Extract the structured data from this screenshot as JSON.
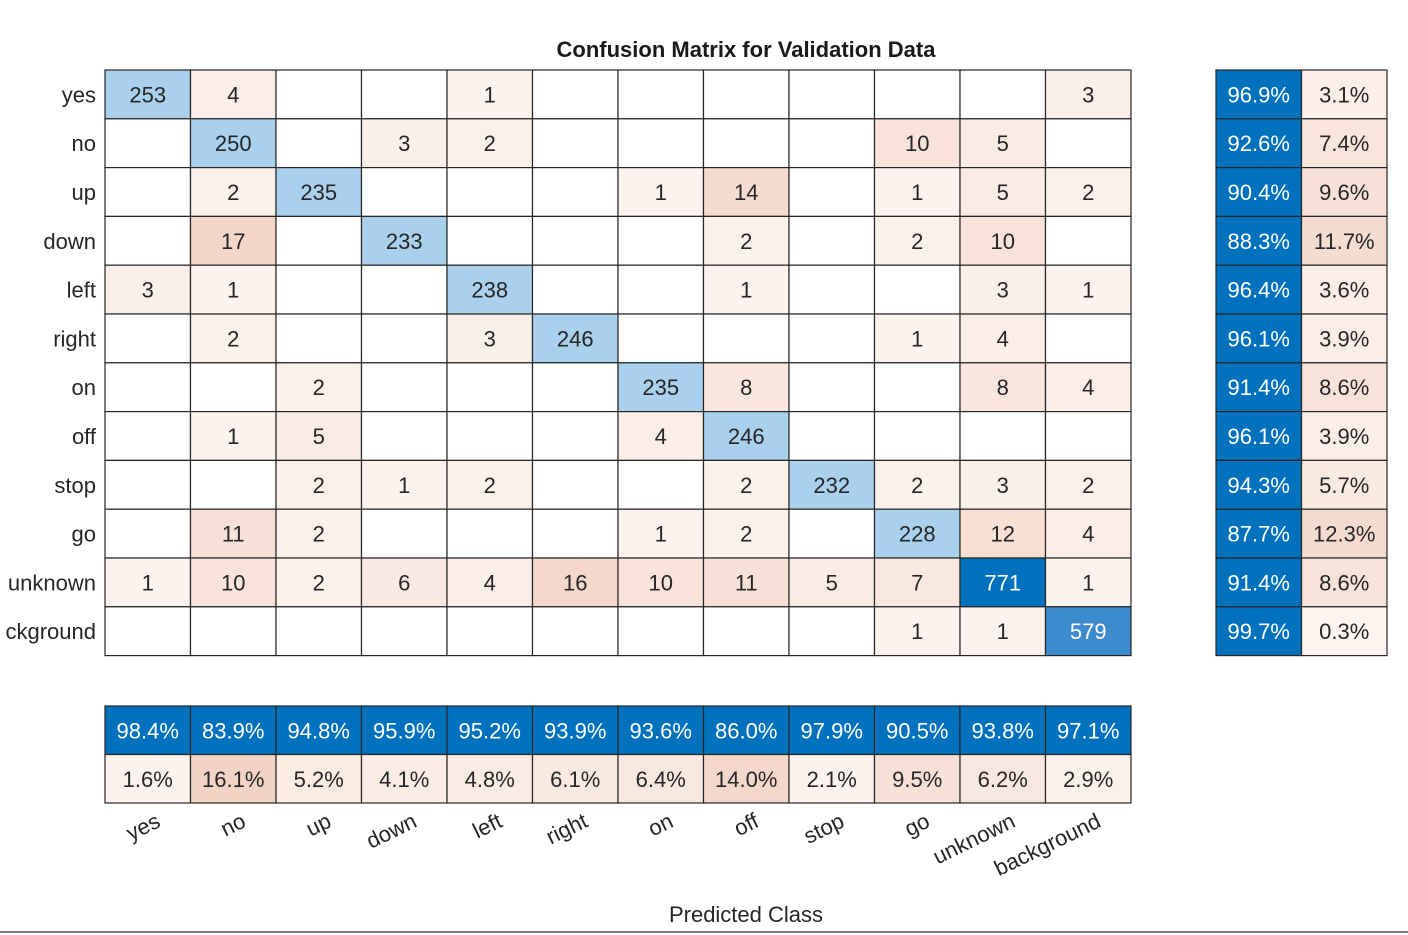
{
  "chart_data": {
    "type": "heatmap",
    "title": "Confusion Matrix for Validation Data",
    "xlabel": "Predicted Class",
    "ylabel": "",
    "rows": [
      "yes",
      "no",
      "up",
      "down",
      "left",
      "right",
      "on",
      "off",
      "stop",
      "go",
      "unknown",
      "background"
    ],
    "row_tick_labels": [
      "yes",
      "no",
      "up",
      "down",
      "left",
      "right",
      "on",
      "off",
      "stop",
      "go",
      "unknown",
      "ckground"
    ],
    "columns": [
      "yes",
      "no",
      "up",
      "down",
      "left",
      "right",
      "on",
      "off",
      "stop",
      "go",
      "unknown",
      "background"
    ],
    "matrix": [
      [
        253,
        4,
        null,
        null,
        1,
        null,
        null,
        null,
        null,
        null,
        null,
        3
      ],
      [
        null,
        250,
        null,
        3,
        2,
        null,
        null,
        null,
        null,
        10,
        5,
        null
      ],
      [
        null,
        2,
        235,
        null,
        null,
        null,
        1,
        14,
        null,
        1,
        5,
        2
      ],
      [
        null,
        17,
        null,
        233,
        null,
        null,
        null,
        2,
        null,
        2,
        10,
        null
      ],
      [
        3,
        1,
        null,
        null,
        238,
        null,
        null,
        1,
        null,
        null,
        3,
        1
      ],
      [
        null,
        2,
        null,
        null,
        3,
        246,
        null,
        null,
        null,
        1,
        4,
        null
      ],
      [
        null,
        null,
        2,
        null,
        null,
        null,
        235,
        8,
        null,
        null,
        8,
        4
      ],
      [
        null,
        1,
        5,
        null,
        null,
        null,
        4,
        246,
        null,
        null,
        null,
        null
      ],
      [
        null,
        null,
        2,
        1,
        2,
        null,
        null,
        2,
        232,
        2,
        3,
        2
      ],
      [
        null,
        11,
        2,
        null,
        null,
        null,
        1,
        2,
        null,
        228,
        12,
        4
      ],
      [
        1,
        10,
        2,
        6,
        4,
        16,
        10,
        11,
        5,
        7,
        771,
        1
      ],
      [
        null,
        null,
        null,
        null,
        null,
        null,
        null,
        null,
        null,
        1,
        1,
        579
      ]
    ],
    "row_summary": {
      "correct": [
        "96.9%",
        "92.6%",
        "90.4%",
        "88.3%",
        "96.4%",
        "96.1%",
        "91.4%",
        "96.1%",
        "94.3%",
        "87.7%",
        "91.4%",
        "99.7%"
      ],
      "incorrect": [
        "3.1%",
        "7.4%",
        "9.6%",
        "11.7%",
        "3.6%",
        "3.9%",
        "8.6%",
        "3.9%",
        "5.7%",
        "12.3%",
        "8.6%",
        "0.3%"
      ]
    },
    "column_summary": {
      "correct": [
        "98.4%",
        "83.9%",
        "94.8%",
        "95.9%",
        "95.2%",
        "93.9%",
        "93.6%",
        "86.0%",
        "97.9%",
        "90.5%",
        "93.8%",
        "97.1%"
      ],
      "incorrect": [
        "1.6%",
        "16.1%",
        "5.2%",
        "4.1%",
        "4.8%",
        "6.1%",
        "6.4%",
        "14.0%",
        "2.1%",
        "9.5%",
        "6.2%",
        "2.9%"
      ]
    },
    "colors": {
      "diagonal_light": "#a9d0ec",
      "diagonal_mid": "#3d8bcd",
      "diagonal_dark": "#0072bd",
      "offdiag_base": "#fdf4f0",
      "offdiag_strong": "#f4d6c9",
      "summary_correct": "#0072bd",
      "grid_line": "#262626",
      "text": "#262626"
    }
  }
}
